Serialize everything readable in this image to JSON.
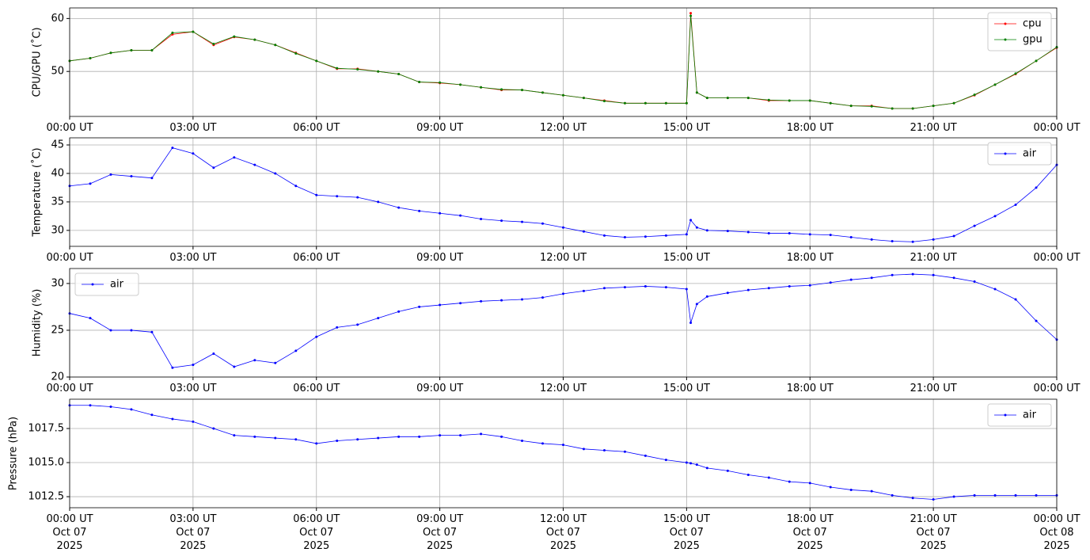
{
  "chart_data": [
    {
      "type": "line",
      "ylabel": "CPU/GPU (˚C)",
      "legend": "upper right",
      "grid": true,
      "x": [
        0,
        0.5,
        1,
        1.5,
        2,
        2.5,
        3,
        3.5,
        4,
        4.5,
        5,
        5.5,
        6,
        6.5,
        7,
        7.5,
        8,
        8.5,
        9,
        9.5,
        10,
        10.5,
        11,
        11.5,
        12,
        12.5,
        13,
        13.5,
        14,
        14.5,
        15,
        15.1,
        15.25,
        15.5,
        16,
        16.5,
        17,
        17.5,
        18,
        18.5,
        19,
        19.5,
        20,
        20.5,
        21,
        21.5,
        22,
        22.5,
        23,
        23.5,
        24
      ],
      "xlim": [
        0,
        24
      ],
      "xticks": [
        {
          "value": 0,
          "label": "00:00 UT"
        },
        {
          "value": 3,
          "label": "03:00 UT"
        },
        {
          "value": 6,
          "label": "06:00 UT"
        },
        {
          "value": 9,
          "label": "09:00 UT"
        },
        {
          "value": 12,
          "label": "12:00 UT"
        },
        {
          "value": 15,
          "label": "15:00 UT"
        },
        {
          "value": 18,
          "label": "18:00 UT"
        },
        {
          "value": 21,
          "label": "21:00 UT"
        },
        {
          "value": 24,
          "label": "00:00 UT"
        }
      ],
      "ylim": [
        41.5,
        62
      ],
      "yticks": [
        50,
        60
      ],
      "series": [
        {
          "name": "cpu",
          "color": "#ff0000",
          "values": [
            52,
            52.5,
            53.5,
            54,
            54,
            57,
            57.5,
            55,
            56.5,
            56,
            55,
            53.5,
            52,
            50.5,
            50.5,
            50,
            49.5,
            48,
            47.8,
            47.5,
            47,
            46.5,
            46.5,
            46,
            45.5,
            45,
            44.5,
            44,
            44,
            44,
            44,
            61,
            46,
            45,
            45,
            45,
            44.5,
            44.5,
            44.5,
            44,
            43.5,
            43.5,
            43,
            43,
            43.5,
            44,
            45.5,
            47.5,
            49.5,
            52,
            54.5
          ]
        },
        {
          "name": "gpu",
          "color": "#008000",
          "values": [
            52,
            52.5,
            53.5,
            54,
            54,
            57.3,
            57.5,
            55.2,
            56.6,
            56,
            55,
            53.4,
            52,
            50.6,
            50.4,
            50,
            49.5,
            48,
            47.9,
            47.5,
            47,
            46.6,
            46.5,
            46,
            45.5,
            45,
            44.4,
            44,
            44,
            44,
            44,
            60.5,
            46,
            45,
            45,
            45,
            44.6,
            44.5,
            44.5,
            44,
            43.5,
            43.4,
            43,
            43,
            43.5,
            44,
            45.6,
            47.5,
            49.6,
            52,
            54.6
          ]
        }
      ]
    },
    {
      "type": "line",
      "ylabel": "Temperature (˚C)",
      "legend": "upper right",
      "grid": true,
      "x": [
        0,
        0.5,
        1,
        1.5,
        2,
        2.5,
        3,
        3.5,
        4,
        4.5,
        5,
        5.5,
        6,
        6.5,
        7,
        7.5,
        8,
        8.5,
        9,
        9.5,
        10,
        10.5,
        11,
        11.5,
        12,
        12.5,
        13,
        13.5,
        14,
        14.5,
        15,
        15.1,
        15.25,
        15.5,
        16,
        16.5,
        17,
        17.5,
        18,
        18.5,
        19,
        19.5,
        20,
        20.5,
        21,
        21.5,
        22,
        22.5,
        23,
        23.5,
        24
      ],
      "xlim": [
        0,
        24
      ],
      "xticks": [
        {
          "value": 0,
          "label": "00:00 UT"
        },
        {
          "value": 3,
          "label": "03:00 UT"
        },
        {
          "value": 6,
          "label": "06:00 UT"
        },
        {
          "value": 9,
          "label": "09:00 UT"
        },
        {
          "value": 12,
          "label": "12:00 UT"
        },
        {
          "value": 15,
          "label": "15:00 UT"
        },
        {
          "value": 18,
          "label": "18:00 UT"
        },
        {
          "value": 21,
          "label": "21:00 UT"
        },
        {
          "value": 24,
          "label": "00:00 UT"
        }
      ],
      "ylim": [
        27.2,
        46.25
      ],
      "yticks": [
        30,
        35,
        40,
        45
      ],
      "series": [
        {
          "name": "air",
          "color": "#0000ff",
          "values": [
            37.8,
            38.2,
            39.8,
            39.5,
            39.2,
            44.5,
            43.5,
            41,
            42.8,
            41.5,
            40,
            37.8,
            36.2,
            36,
            35.8,
            35,
            34,
            33.4,
            33,
            32.6,
            32,
            31.7,
            31.5,
            31.2,
            30.5,
            29.8,
            29.1,
            28.8,
            28.9,
            29.1,
            29.3,
            31.8,
            30.5,
            30,
            29.9,
            29.7,
            29.5,
            29.5,
            29.3,
            29.2,
            28.8,
            28.4,
            28.1,
            28,
            28.4,
            29,
            30.8,
            32.5,
            34.5,
            37.5,
            41.5
          ]
        }
      ]
    },
    {
      "type": "line",
      "ylabel": "Humidity (%)",
      "legend": "upper left",
      "grid": true,
      "x": [
        0,
        0.5,
        1,
        1.5,
        2,
        2.5,
        3,
        3.5,
        4,
        4.5,
        5,
        5.5,
        6,
        6.5,
        7,
        7.5,
        8,
        8.5,
        9,
        9.5,
        10,
        10.5,
        11,
        11.5,
        12,
        12.5,
        13,
        13.5,
        14,
        14.5,
        15,
        15.1,
        15.25,
        15.5,
        16,
        16.5,
        17,
        17.5,
        18,
        18.5,
        19,
        19.5,
        20,
        20.5,
        21,
        21.5,
        22,
        22.5,
        23,
        23.5,
        24
      ],
      "xlim": [
        0,
        24
      ],
      "xticks": [
        {
          "value": 0,
          "label": "00:00 UT"
        },
        {
          "value": 3,
          "label": "03:00 UT"
        },
        {
          "value": 6,
          "label": "06:00 UT"
        },
        {
          "value": 9,
          "label": "09:00 UT"
        },
        {
          "value": 12,
          "label": "12:00 UT"
        },
        {
          "value": 15,
          "label": "15:00 UT"
        },
        {
          "value": 18,
          "label": "18:00 UT"
        },
        {
          "value": 21,
          "label": "21:00 UT"
        },
        {
          "value": 24,
          "label": "00:00 UT"
        }
      ],
      "ylim": [
        20,
        31.6
      ],
      "yticks": [
        20,
        25,
        30
      ],
      "series": [
        {
          "name": "air",
          "color": "#0000ff",
          "values": [
            26.8,
            26.3,
            25,
            25,
            24.8,
            21,
            21.3,
            22.5,
            21.1,
            21.8,
            21.5,
            22.8,
            24.3,
            25.3,
            25.6,
            26.3,
            27,
            27.5,
            27.7,
            27.9,
            28.1,
            28.2,
            28.3,
            28.5,
            28.9,
            29.2,
            29.5,
            29.6,
            29.7,
            29.6,
            29.4,
            25.8,
            27.8,
            28.6,
            29,
            29.3,
            29.5,
            29.7,
            29.8,
            30.1,
            30.4,
            30.6,
            30.9,
            31,
            30.9,
            30.6,
            30.2,
            29.4,
            28.3,
            26,
            24
          ]
        }
      ]
    },
    {
      "type": "line",
      "ylabel": "Pressure (hPa)",
      "legend": "upper right",
      "grid": true,
      "x": [
        0,
        0.5,
        1,
        1.5,
        2,
        2.5,
        3,
        3.5,
        4,
        4.5,
        5,
        5.5,
        6,
        6.5,
        7,
        7.5,
        8,
        8.5,
        9,
        9.5,
        10,
        10.5,
        11,
        11.5,
        12,
        12.5,
        13,
        13.5,
        14,
        14.5,
        15,
        15.1,
        15.25,
        15.5,
        16,
        16.5,
        17,
        17.5,
        18,
        18.5,
        19,
        19.5,
        20,
        20.5,
        21,
        21.5,
        22,
        22.5,
        23,
        23.5,
        24
      ],
      "xlim": [
        0,
        24
      ],
      "xticks": [
        {
          "value": 0,
          "label": "00:00 UT\nOct 07\n2025"
        },
        {
          "value": 3,
          "label": "03:00 UT\nOct 07\n2025"
        },
        {
          "value": 6,
          "label": "06:00 UT\nOct 07\n2025"
        },
        {
          "value": 9,
          "label": "09:00 UT\nOct 07\n2025"
        },
        {
          "value": 12,
          "label": "12:00 UT\nOct 07\n2025"
        },
        {
          "value": 15,
          "label": "15:00 UT\nOct 07\n2025"
        },
        {
          "value": 18,
          "label": "18:00 UT\nOct 07\n2025"
        },
        {
          "value": 21,
          "label": "21:00 UT\nOct 07\n2025"
        },
        {
          "value": 24,
          "label": "00:00 UT\nOct 08\n2025"
        }
      ],
      "ylim": [
        1011.69,
        1019.65
      ],
      "yticks": [
        {
          "value": 1012.5,
          "label": "1012.5"
        },
        {
          "value": 1015.0,
          "label": "1015.0"
        },
        {
          "value": 1017.5,
          "label": "1017.5"
        }
      ],
      "series": [
        {
          "name": "air",
          "color": "#0000ff",
          "values": [
            1019.2,
            1019.2,
            1019.1,
            1018.9,
            1018.5,
            1018.2,
            1018.0,
            1017.5,
            1017.0,
            1016.9,
            1016.8,
            1016.7,
            1016.4,
            1016.6,
            1016.7,
            1016.8,
            1016.9,
            1016.9,
            1017.0,
            1017.0,
            1017.1,
            1016.9,
            1016.6,
            1016.4,
            1016.3,
            1016.0,
            1015.9,
            1015.8,
            1015.5,
            1015.2,
            1015.0,
            1014.95,
            1014.85,
            1014.6,
            1014.4,
            1014.1,
            1013.9,
            1013.6,
            1013.5,
            1013.2,
            1013.0,
            1012.9,
            1012.6,
            1012.4,
            1012.3,
            1012.5,
            1012.6,
            1012.6,
            1012.6,
            1012.6,
            1012.6
          ]
        }
      ]
    }
  ]
}
